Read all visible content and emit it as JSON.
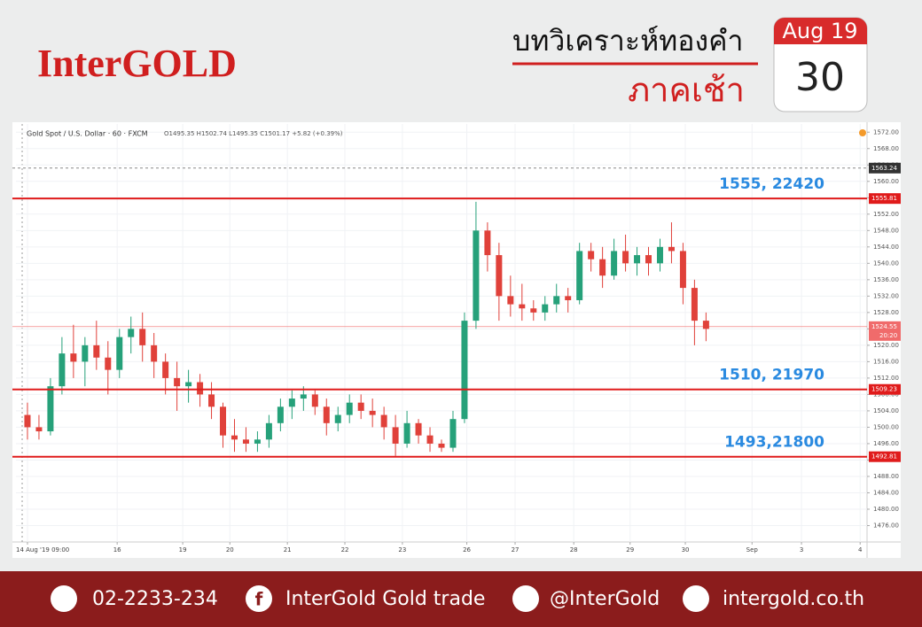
{
  "header": {
    "brand": "InterGOLD",
    "title": "บทวิเคราะห์ทองคำ",
    "subtitle": "ภาคเช้า",
    "calendar_month": "Aug 19",
    "calendar_day": "30"
  },
  "chart_data": {
    "type": "candlestick",
    "title": "Gold Spot / U.S. Dollar · 60 · FXCM",
    "subtitle": "O1495.35 H1502.74 L1495.35 C1501.17 +5.82 (+0.39%)",
    "up_color": "#26a17a",
    "down_color": "#e0413a",
    "x": [
      0,
      1,
      2,
      3,
      4,
      5,
      6,
      7,
      8,
      9,
      10,
      11,
      12,
      13,
      14,
      15,
      16,
      17,
      18,
      19,
      20,
      21,
      22,
      23,
      24,
      25,
      26,
      27,
      28,
      29,
      30,
      31,
      32,
      33,
      34,
      35,
      36,
      37,
      38,
      39,
      40,
      41,
      42,
      43,
      44,
      45,
      46,
      47,
      48,
      49,
      50,
      51,
      52,
      53,
      54,
      55,
      56,
      57,
      58,
      59
    ],
    "open": [
      1503,
      1500,
      1499,
      1510,
      1518,
      1516,
      1520,
      1517,
      1514,
      1522,
      1524,
      1520,
      1516,
      1512,
      1510,
      1511,
      1508,
      1505,
      1498,
      1497,
      1496,
      1497,
      1501,
      1505,
      1507,
      1508,
      1505,
      1501,
      1503,
      1506,
      1504,
      1503,
      1500,
      1496,
      1501,
      1498,
      1496,
      1495,
      1502,
      1526,
      1548,
      1542,
      1532,
      1530,
      1529,
      1528,
      1530,
      1532,
      1531,
      1543,
      1541,
      1537,
      1543,
      1540,
      1542,
      1540,
      1544,
      1543,
      1534,
      1526
    ],
    "high": [
      1506,
      1503,
      1512,
      1522,
      1525,
      1522,
      1526,
      1521,
      1524,
      1527,
      1528,
      1523,
      1518,
      1516,
      1514,
      1513,
      1511,
      1506,
      1502,
      1500,
      1499,
      1503,
      1507,
      1509,
      1510,
      1509,
      1507,
      1505,
      1508,
      1508,
      1507,
      1505,
      1503,
      1504,
      1502,
      1500,
      1497,
      1504,
      1528,
      1555,
      1550,
      1545,
      1537,
      1535,
      1531,
      1532,
      1535,
      1534,
      1545,
      1545,
      1544,
      1546,
      1547,
      1544,
      1544,
      1546,
      1550,
      1545,
      1536,
      1528
    ],
    "low": [
      1497,
      1497,
      1498,
      1508,
      1512,
      1510,
      1514,
      1508,
      1512,
      1518,
      1516,
      1512,
      1508,
      1504,
      1506,
      1505,
      1502,
      1495,
      1494,
      1494,
      1494,
      1495,
      1499,
      1502,
      1504,
      1503,
      1498,
      1499,
      1501,
      1502,
      1500,
      1497,
      1493,
      1495,
      1496,
      1494,
      1494,
      1494,
      1501,
      1524,
      1538,
      1526,
      1527,
      1526,
      1526,
      1526,
      1528,
      1528,
      1530,
      1538,
      1534,
      1536,
      1538,
      1537,
      1537,
      1538,
      1540,
      1530,
      1520,
      1521
    ],
    "close": [
      1500,
      1499,
      1510,
      1518,
      1516,
      1520,
      1517,
      1514,
      1522,
      1524,
      1520,
      1516,
      1512,
      1510,
      1511,
      1508,
      1505,
      1498,
      1497,
      1496,
      1497,
      1501,
      1505,
      1507,
      1508,
      1505,
      1501,
      1503,
      1506,
      1504,
      1503,
      1500,
      1496,
      1501,
      1498,
      1496,
      1495,
      1502,
      1526,
      1548,
      1542,
      1532,
      1530,
      1529,
      1528,
      1530,
      1532,
      1531,
      1543,
      1541,
      1537,
      1543,
      1540,
      1542,
      1540,
      1544,
      1543,
      1534,
      1526,
      1524
    ],
    "xlim": [
      -1,
      73
    ],
    "xticks": [
      {
        "value": 0,
        "label": "14 Aug '19  09:00"
      },
      {
        "value": 7.8,
        "label": "16"
      },
      {
        "value": 13.5,
        "label": "19"
      },
      {
        "value": 17.6,
        "label": "20"
      },
      {
        "value": 22.6,
        "label": "21"
      },
      {
        "value": 27.6,
        "label": "22"
      },
      {
        "value": 32.6,
        "label": "23"
      },
      {
        "value": 38.2,
        "label": "26"
      },
      {
        "value": 42.4,
        "label": "27"
      },
      {
        "value": 47.5,
        "label": "28"
      },
      {
        "value": 52.4,
        "label": "29"
      },
      {
        "value": 57.2,
        "label": "30"
      },
      {
        "value": 63,
        "label": "Sep"
      },
      {
        "value": 67.3,
        "label": "3"
      },
      {
        "value": 72.4,
        "label": "4"
      }
    ],
    "ylim": [
      1472,
      1574
    ],
    "yticks": [
      {
        "value": 1476,
        "label": "1476.00"
      },
      {
        "value": 1480,
        "label": "1480.00"
      },
      {
        "value": 1484,
        "label": "1484.00"
      },
      {
        "value": 1488,
        "label": "1488.00"
      },
      {
        "value": 1492,
        "label": "1492.00"
      },
      {
        "value": 1496,
        "label": "1496.00"
      },
      {
        "value": 1500,
        "label": "1500.00"
      },
      {
        "value": 1504,
        "label": "1504.00"
      },
      {
        "value": 1508,
        "label": "1508.00"
      },
      {
        "value": 1512,
        "label": "1512.00"
      },
      {
        "value": 1516,
        "label": "1516.00"
      },
      {
        "value": 1520,
        "label": "1520.00"
      },
      {
        "value": 1524,
        "label": "1524.00"
      },
      {
        "value": 1528,
        "label": "1528.00"
      },
      {
        "value": 1532,
        "label": "1532.00"
      },
      {
        "value": 1536,
        "label": "1536.00"
      },
      {
        "value": 1540,
        "label": "1540.00"
      },
      {
        "value": 1544,
        "label": "1544.00"
      },
      {
        "value": 1548,
        "label": "1548.00"
      },
      {
        "value": 1552,
        "label": "1552.00"
      },
      {
        "value": 1556,
        "label": "1556.00"
      },
      {
        "value": 1560,
        "label": "1560.00"
      },
      {
        "value": 1564,
        "label": "1564.00"
      },
      {
        "value": 1568,
        "label": "1568.00"
      },
      {
        "value": 1572,
        "label": "1572.00"
      }
    ],
    "grid": true,
    "hlines": [
      {
        "value": 1555.81,
        "annotation": "1555, 22420",
        "color": "#e01b1b"
      },
      {
        "value": 1509.23,
        "annotation": "1510, 21970",
        "color": "#e01b1b"
      },
      {
        "value": 1492.81,
        "annotation": "1493,21800",
        "color": "#e01b1b"
      }
    ],
    "high_marker": {
      "value": 1563.24,
      "color": "#888888"
    },
    "last_price": {
      "value": 1524.55,
      "countdown": "20:20",
      "color": "#f06b6b"
    }
  },
  "footer": {
    "phone": "02-2233-234",
    "facebook": "InterGold Gold trade",
    "line": "@InterGold",
    "website": "intergold.co.th"
  }
}
